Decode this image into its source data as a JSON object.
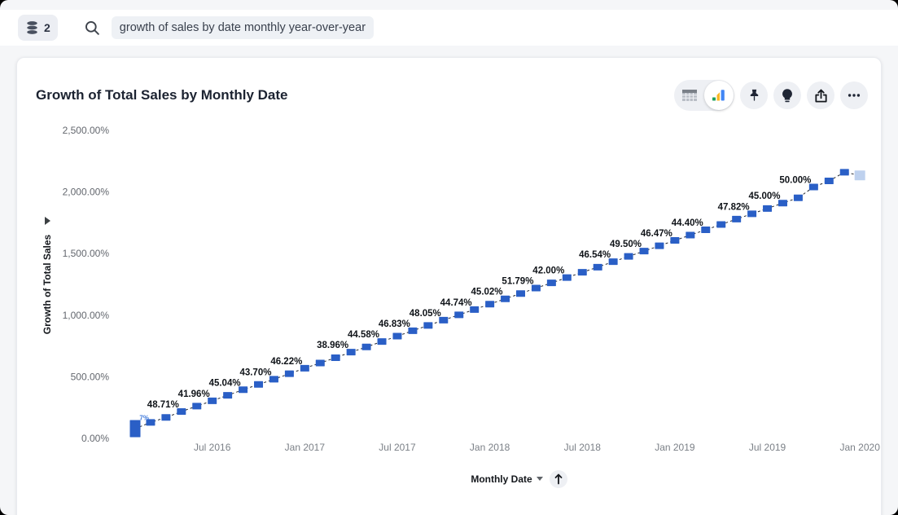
{
  "topbar": {
    "datasource_button": {
      "icon": "database-icon",
      "count": "2"
    },
    "search": {
      "icon": "search-icon",
      "query_chip": "growth of sales by date monthly year-over-year"
    }
  },
  "card": {
    "title": "Growth of Total Sales by Monthly Date",
    "toolbar": {
      "view_toggle": [
        {
          "icon": "table-view-icon",
          "selected": false
        },
        {
          "icon": "chart-view-icon",
          "selected": true
        }
      ],
      "buttons": [
        {
          "icon": "pin-icon"
        },
        {
          "icon": "lightbulb-icon"
        },
        {
          "icon": "share-icon"
        },
        {
          "icon": "more-options-icon"
        }
      ]
    }
  },
  "chart_data": {
    "type": "line",
    "title": "Growth of Total Sales by Monthly Date",
    "xlabel": "Monthly Date",
    "ylabel": "Growth of Total Sales",
    "line_style": "dashed",
    "marker": "square",
    "grid": false,
    "legend": false,
    "ylim": [
      0,
      2500
    ],
    "x_axis": {
      "label": "Monthly Date",
      "sort_icon": "sort-ascending-icon",
      "caret_icon": "caret-down-icon",
      "ticks": [
        "Jul 2016",
        "Jan 2017",
        "Jul 2017",
        "Jan 2018",
        "Jul 2018",
        "Jan 2019",
        "Jul 2019",
        "Jan 2020"
      ]
    },
    "y_axis": {
      "label": "Growth of Total Sales",
      "caret_icon": "caret-right-icon",
      "ticks": [
        {
          "v": 0,
          "label": "0.00%"
        },
        {
          "v": 500,
          "label": "500.00%"
        },
        {
          "v": 1000,
          "label": "1,000.00%"
        },
        {
          "v": 1500,
          "label": "1,500.00%"
        },
        {
          "v": 2000,
          "label": "2,000.00%"
        },
        {
          "v": 2500,
          "label": "2,500.00%"
        }
      ]
    },
    "series": [
      {
        "name": "Growth of Total Sales",
        "color": "#2a5fc6",
        "muted_point_color": "#bed1ee",
        "label_color": "#0f1318",
        "small_label_color": "#3f79db",
        "points": [
          {
            "x": "Feb 2016",
            "y": 79,
            "emphasis": "tall"
          },
          {
            "x": "Mar 2016",
            "y": 130,
            "label": "7%",
            "small_label": true
          },
          {
            "x": "Apr 2016",
            "y": 170
          },
          {
            "x": "May 2016",
            "y": 218,
            "label": "48.71%"
          },
          {
            "x": "Jun 2016",
            "y": 262
          },
          {
            "x": "Jul 2016",
            "y": 305,
            "label": "41.96%"
          },
          {
            "x": "Aug 2016",
            "y": 350
          },
          {
            "x": "Sep 2016",
            "y": 395,
            "label": "45.04%"
          },
          {
            "x": "Oct 2016",
            "y": 438
          },
          {
            "x": "Nov 2016",
            "y": 480,
            "label": "43.70%"
          },
          {
            "x": "Dec 2016",
            "y": 525
          },
          {
            "x": "Jan 2017",
            "y": 570,
            "label": "46.22%"
          },
          {
            "x": "Feb 2017",
            "y": 612
          },
          {
            "x": "Mar 2017",
            "y": 655
          },
          {
            "x": "Apr 2017",
            "y": 700,
            "label": "38.96%"
          },
          {
            "x": "May 2017",
            "y": 742
          },
          {
            "x": "Jun 2017",
            "y": 786,
            "label": "44.58%"
          },
          {
            "x": "Jul 2017",
            "y": 830
          },
          {
            "x": "Aug 2017",
            "y": 874,
            "label": "46.83%"
          },
          {
            "x": "Sep 2017",
            "y": 917
          },
          {
            "x": "Oct 2017",
            "y": 960,
            "label": "48.05%"
          },
          {
            "x": "Nov 2017",
            "y": 1003
          },
          {
            "x": "Dec 2017",
            "y": 1046,
            "label": "44.74%"
          },
          {
            "x": "Jan 2018",
            "y": 1090
          },
          {
            "x": "Feb 2018",
            "y": 1133,
            "label": "45.02%"
          },
          {
            "x": "Mar 2018",
            "y": 1176
          },
          {
            "x": "Apr 2018",
            "y": 1220,
            "label": "51.79%"
          },
          {
            "x": "May 2018",
            "y": 1262
          },
          {
            "x": "Jun 2018",
            "y": 1305,
            "label": "42.00%"
          },
          {
            "x": "Jul 2018",
            "y": 1348
          },
          {
            "x": "Aug 2018",
            "y": 1390
          },
          {
            "x": "Sep 2018",
            "y": 1434,
            "label": "46.54%"
          },
          {
            "x": "Oct 2018",
            "y": 1477
          },
          {
            "x": "Nov 2018",
            "y": 1520,
            "label": "49.50%"
          },
          {
            "x": "Dec 2018",
            "y": 1563
          },
          {
            "x": "Jan 2019",
            "y": 1607,
            "label": "46.47%"
          },
          {
            "x": "Feb 2019",
            "y": 1650
          },
          {
            "x": "Mar 2019",
            "y": 1693,
            "label": "44.40%"
          },
          {
            "x": "Apr 2019",
            "y": 1736
          },
          {
            "x": "May 2019",
            "y": 1780
          },
          {
            "x": "Jun 2019",
            "y": 1823,
            "label": "47.82%"
          },
          {
            "x": "Jul 2019",
            "y": 1866
          },
          {
            "x": "Aug 2019",
            "y": 1910,
            "label": "45.00%"
          },
          {
            "x": "Sep 2019",
            "y": 1953
          },
          {
            "x": "Oct 2019",
            "y": 2040,
            "label": "50.00%"
          },
          {
            "x": "Nov 2019",
            "y": 2090
          },
          {
            "x": "Dec 2019",
            "y": 2160
          },
          {
            "x": "Jan 2020",
            "y": 2135,
            "muted": true
          }
        ]
      }
    ]
  }
}
